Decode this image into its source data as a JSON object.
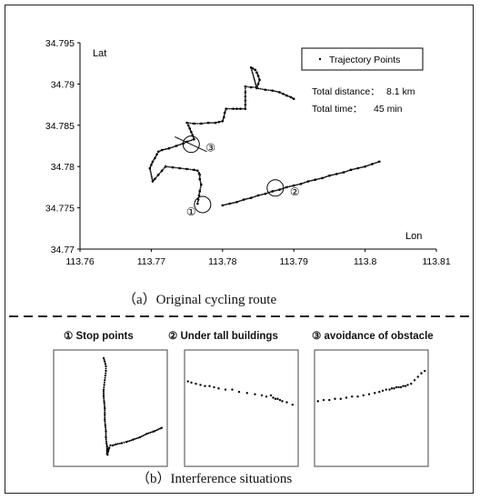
{
  "chart_data": [
    {
      "type": "scatter",
      "title": "",
      "xlabel": "Lon",
      "ylabel": "Lat",
      "xlim": [
        113.76,
        113.81
      ],
      "ylim": [
        34.77,
        34.795
      ],
      "x_ticks": [
        "113.76",
        "113.77",
        "113.78",
        "113.79",
        "113.8",
        "113.81"
      ],
      "y_ticks": [
        "34.77",
        "34.775",
        "34.78",
        "34.785",
        "34.79",
        "34.795"
      ],
      "legend": "Trajectory Points",
      "legend_position": "top-right",
      "grid": false,
      "annotations": {
        "distance_label": "Total distance：",
        "distance_value": "8.1 km",
        "time_label": "Total time：",
        "time_value": "45 min"
      },
      "series": [
        {
          "name": "Trajectory Points",
          "x": [
            113.7765,
            113.7766,
            113.7767,
            113.7768,
            113.777,
            113.7768,
            113.7768,
            113.7767,
            113.7765,
            113.776,
            113.775,
            113.774,
            113.773,
            113.772,
            113.7715,
            113.771,
            113.7705,
            113.7702,
            113.7698,
            113.77,
            113.7702,
            113.7705,
            113.7708,
            113.771,
            113.7715,
            113.7725,
            113.7735,
            113.7745,
            113.775,
            113.776,
            113.7758,
            113.7756,
            113.7754,
            113.7752,
            113.775,
            113.776,
            113.777,
            113.778,
            113.779,
            113.7795,
            113.78,
            113.7802,
            113.7803,
            113.7805,
            113.7815,
            113.782,
            113.7825,
            113.7832,
            113.7832,
            113.7832,
            113.7832,
            113.7832,
            113.7832,
            113.784,
            113.7848,
            113.785,
            113.7852,
            113.785,
            113.7848,
            113.7846,
            113.7842,
            113.784,
            113.7848,
            113.786,
            113.787,
            113.788,
            113.7885,
            113.789,
            113.7896,
            113.79,
            113.78,
            113.781,
            113.782,
            113.783,
            113.784,
            113.785,
            113.786,
            113.787,
            113.788,
            113.789,
            113.79,
            113.791,
            113.792,
            113.793,
            113.794,
            113.795,
            113.796,
            113.797,
            113.798,
            113.799,
            113.8,
            113.801,
            113.802
          ],
          "y": [
            34.7755,
            34.776,
            34.7765,
            34.777,
            34.7778,
            34.7785,
            34.779,
            34.7792,
            34.7795,
            34.7796,
            34.7797,
            34.7798,
            34.7799,
            34.78,
            34.7795,
            34.779,
            34.7785,
            34.7782,
            34.7798,
            34.7802,
            34.7806,
            34.781,
            34.7815,
            34.7818,
            34.782,
            34.7822,
            34.7825,
            34.7828,
            34.783,
            34.7833,
            34.7838,
            34.7842,
            34.7846,
            34.785,
            34.7853,
            34.7852,
            34.7852,
            34.7853,
            34.7853,
            34.7854,
            34.7855,
            34.786,
            34.7865,
            34.787,
            34.787,
            34.787,
            34.787,
            34.787,
            34.7875,
            34.788,
            34.7885,
            34.789,
            34.7897,
            34.7896,
            34.7896,
            34.79,
            34.7905,
            34.791,
            34.7914,
            34.7917,
            34.7919,
            34.792,
            34.7895,
            34.7893,
            34.7892,
            34.789,
            34.7888,
            34.7886,
            34.7884,
            34.7882,
            34.7753,
            34.7755,
            34.7757,
            34.776,
            34.7762,
            34.7765,
            34.7767,
            34.777,
            34.7772,
            34.7775,
            34.7777,
            34.7779,
            34.7782,
            34.7784,
            34.7786,
            34.7789,
            34.7791,
            34.7793,
            34.7796,
            34.7798,
            34.78,
            34.7803,
            34.7806
          ]
        }
      ],
      "circle_markers": [
        {
          "label": "①",
          "x": 113.7772,
          "y": 34.7754
        },
        {
          "label": "②",
          "x": 113.7874,
          "y": 34.7774
        },
        {
          "label": "③",
          "x": 113.7756,
          "y": 34.7827
        }
      ]
    },
    {
      "type": "scatter",
      "title": "①  Stop points",
      "xlim": [
        0,
        1
      ],
      "ylim": [
        0,
        1
      ],
      "series": [
        {
          "name": "",
          "x": [
            0.44,
            0.45,
            0.455,
            0.46,
            0.46,
            0.455,
            0.45,
            0.445,
            0.44,
            0.44,
            0.445,
            0.45,
            0.45,
            0.45,
            0.455,
            0.46,
            0.46,
            0.465,
            0.47,
            0.47,
            0.47,
            0.475,
            0.475,
            0.48,
            0.48,
            0.48,
            0.49,
            0.5,
            0.52,
            0.55,
            0.6,
            0.64,
            0.7,
            0.76,
            0.82,
            0.88,
            0.95
          ],
          "y": [
            0.93,
            0.9,
            0.88,
            0.86,
            0.82,
            0.78,
            0.74,
            0.7,
            0.66,
            0.6,
            0.55,
            0.5,
            0.45,
            0.4,
            0.35,
            0.3,
            0.25,
            0.2,
            0.17,
            0.14,
            0.11,
            0.1,
            0.12,
            0.14,
            0.15,
            0.13,
            0.16,
            0.18,
            0.18,
            0.19,
            0.2,
            0.21,
            0.23,
            0.25,
            0.28,
            0.3,
            0.33
          ]
        }
      ]
    },
    {
      "type": "scatter",
      "title": "②  Under tall buildings",
      "xlim": [
        0,
        1
      ],
      "ylim": [
        0,
        1
      ],
      "series": [
        {
          "name": "",
          "x": [
            0.03,
            0.06,
            0.1,
            0.14,
            0.18,
            0.22,
            0.26,
            0.3,
            0.36,
            0.42,
            0.48,
            0.55,
            0.62,
            0.68,
            0.72,
            0.76,
            0.78,
            0.8,
            0.82,
            0.84,
            0.86,
            0.9,
            0.95
          ],
          "y": [
            0.73,
            0.72,
            0.71,
            0.7,
            0.69,
            0.69,
            0.68,
            0.67,
            0.66,
            0.66,
            0.64,
            0.63,
            0.62,
            0.61,
            0.6,
            0.61,
            0.59,
            0.58,
            0.58,
            0.57,
            0.56,
            0.55,
            0.53
          ]
        }
      ]
    },
    {
      "type": "scatter",
      "title": "③  avoidance of obstacle",
      "xlim": [
        0,
        1
      ],
      "ylim": [
        0,
        1
      ],
      "series": [
        {
          "name": "",
          "x": [
            0.03,
            0.08,
            0.13,
            0.18,
            0.23,
            0.28,
            0.33,
            0.38,
            0.43,
            0.48,
            0.53,
            0.57,
            0.6,
            0.63,
            0.66,
            0.68,
            0.7,
            0.72,
            0.74,
            0.76,
            0.78,
            0.8,
            0.82,
            0.85,
            0.88,
            0.91,
            0.94,
            0.97
          ],
          "y": [
            0.56,
            0.57,
            0.57,
            0.58,
            0.58,
            0.59,
            0.6,
            0.6,
            0.61,
            0.62,
            0.63,
            0.64,
            0.65,
            0.66,
            0.66,
            0.67,
            0.67,
            0.68,
            0.68,
            0.68,
            0.69,
            0.69,
            0.7,
            0.71,
            0.74,
            0.77,
            0.8,
            0.82
          ]
        }
      ]
    }
  ],
  "captions": {
    "a": "（a）Original cycling route",
    "b": "（b）Interference situations"
  }
}
